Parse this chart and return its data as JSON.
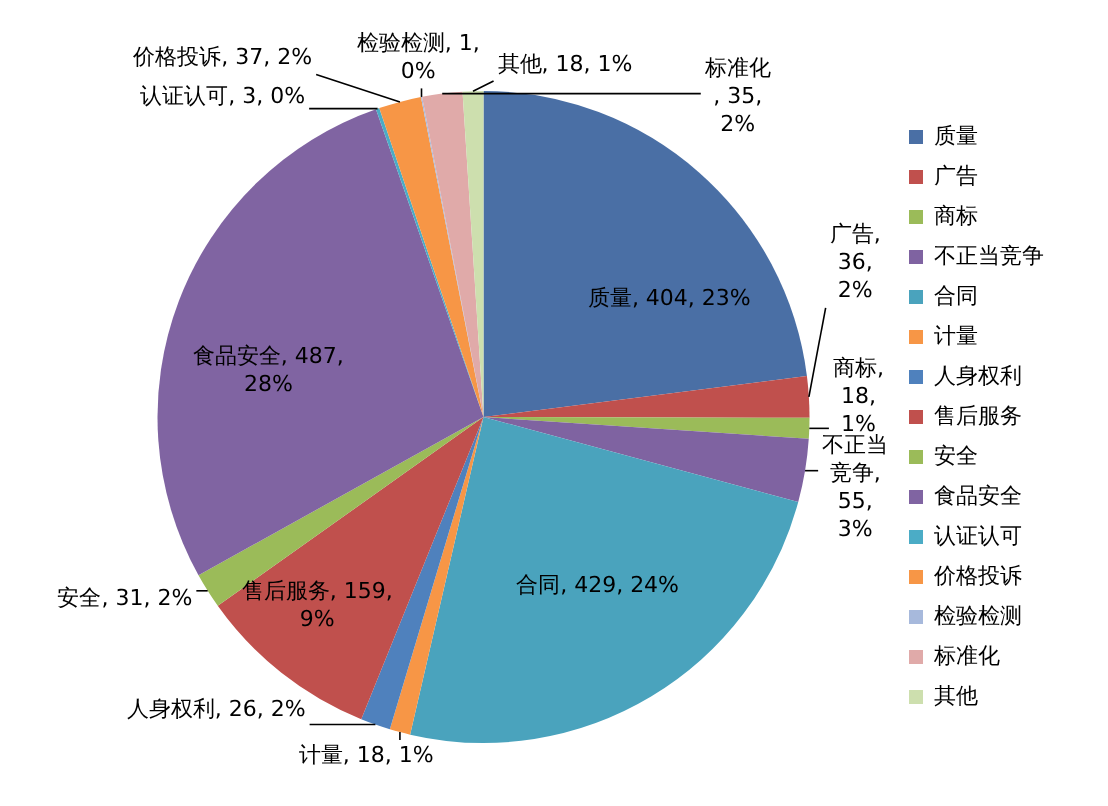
{
  "chart_data": {
    "type": "pie",
    "categories": [
      "质量",
      "广告",
      "商标",
      "不正当竞争",
      "合同",
      "计量",
      "人身权利",
      "售后服务",
      "安全",
      "食品安全",
      "认证认可",
      "价格投诉",
      "检验检测",
      "标准化",
      "其他"
    ],
    "values": [
      404,
      36,
      18,
      55,
      429,
      18,
      26,
      159,
      31,
      487,
      3,
      37,
      1,
      35,
      18
    ],
    "colors": [
      "#4a6fa5",
      "#c0504d",
      "#9bbb59",
      "#7f63a1",
      "#4aa3bd",
      "#f79646",
      "#4f81bd",
      "#c0504d",
      "#9bbb59",
      "#8064a2",
      "#4bacc6",
      "#f79646",
      "#a7b9dc",
      "#e0aaa9",
      "#cddfae"
    ],
    "value_labels": [
      "质量, 404, 23%",
      "广告, 36, 2%",
      "商标, 18, 1%",
      "不正当竞争, 55, 3%",
      "合同, 429, 24%",
      "计量, 18, 1%",
      "人身权利, 26, 2%",
      "售后服务, 159, 9%",
      "安全, 31, 2%",
      "食品安全, 487, 28%",
      "认证认可, 3, 0%",
      "价格投诉, 37, 2%",
      "检验检测, 1, 0%",
      "标准化, 35, 2%",
      "其他, 18, 1%"
    ],
    "legend": "right"
  }
}
